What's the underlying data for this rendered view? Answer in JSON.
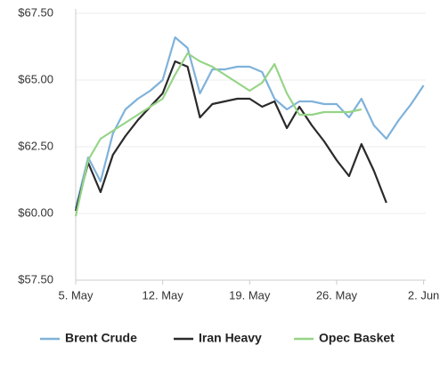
{
  "chart_data": {
    "type": "line",
    "categories": [
      "5. May",
      null,
      null,
      null,
      null,
      null,
      null,
      "12. May",
      null,
      null,
      null,
      null,
      null,
      null,
      "19. May",
      null,
      null,
      null,
      null,
      null,
      null,
      "26. May",
      null,
      null,
      null,
      null,
      null,
      null,
      "2. Jun",
      null
    ],
    "series": [
      {
        "name": "Brent Crude",
        "color": "#7fb2da",
        "values": [
          60.2,
          62.1,
          61.2,
          63.0,
          63.9,
          64.3,
          64.6,
          65.0,
          66.6,
          66.2,
          64.5,
          65.4,
          65.4,
          65.5,
          65.5,
          65.3,
          64.3,
          63.9,
          64.2,
          64.2,
          64.1,
          64.1,
          63.6,
          64.3,
          63.3,
          62.8,
          63.5,
          64.1,
          64.8,
          null
        ]
      },
      {
        "name": "Iran Heavy",
        "color": "#2a2a2a",
        "values": [
          60.1,
          61.9,
          60.8,
          62.2,
          62.9,
          63.5,
          64.0,
          64.5,
          65.7,
          65.5,
          63.6,
          64.1,
          64.2,
          64.3,
          64.3,
          64.0,
          64.2,
          63.2,
          64.0,
          63.3,
          62.7,
          62.0,
          61.4,
          62.6,
          61.6,
          60.4,
          null,
          null,
          null,
          null
        ]
      },
      {
        "name": "Opec Basket",
        "color": "#96d486",
        "values": [
          59.9,
          62.0,
          62.8,
          63.1,
          63.4,
          63.7,
          64.0,
          64.3,
          65.2,
          66.0,
          65.7,
          65.5,
          65.2,
          64.9,
          64.6,
          64.9,
          65.6,
          64.5,
          63.7,
          63.7,
          63.8,
          63.8,
          63.8,
          63.9,
          null,
          null,
          null,
          null,
          null,
          null
        ]
      }
    ],
    "ylim": [
      57.5,
      67.5
    ],
    "yticks": [
      {
        "value": 57.5,
        "label": "$57.50"
      },
      {
        "value": 60,
        "label": "$60.00"
      },
      {
        "value": 62.5,
        "label": "$62.50"
      },
      {
        "value": 65,
        "label": "$65.00"
      },
      {
        "value": 67.5,
        "label": "$67.50"
      }
    ],
    "grid": true
  }
}
